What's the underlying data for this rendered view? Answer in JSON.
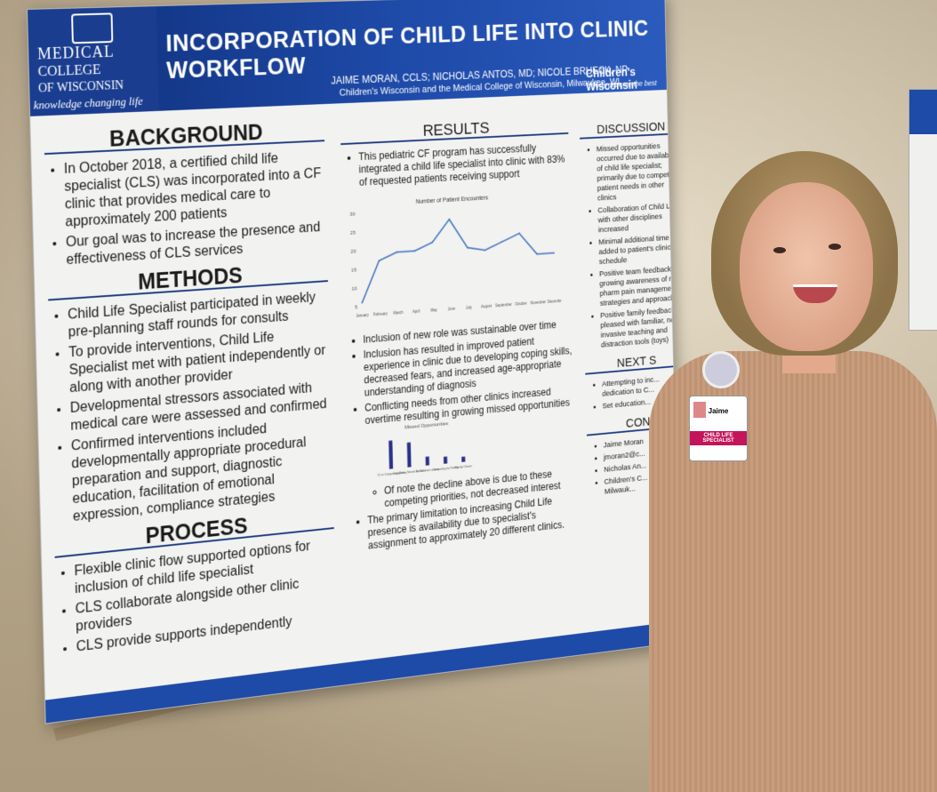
{
  "poster": {
    "logo": {
      "line1": "MEDICAL",
      "line2": "COLLEGE",
      "line3": "OF WISCONSIN",
      "tagline": "knowledge changing life"
    },
    "title": "INCORPORATION OF CHILD LIFE INTO CLINIC WORKFLOW",
    "authors": "JAIME MORAN, CCLS; NICHOLAS ANTOS, MD; NICOLE BRUECK, NP",
    "affiliation": "Children's Wisconsin and the Medical College of Wisconsin, Milwaukee, WI",
    "partner": {
      "name": "Children's Wisconsin",
      "tagline": "Kids deserve the best"
    },
    "background": {
      "heading": "BACKGROUND",
      "items": [
        "In October 2018, a certified child life specialist (CLS) was incorporated into a CF clinic that provides medical care to approximately 200 patients",
        "Our goal was to increase the presence and effectiveness of CLS services"
      ]
    },
    "methods": {
      "heading": "METHODS",
      "items": [
        "Child Life Specialist participated in weekly pre-planning staff rounds for consults",
        "To provide interventions, Child Life Specialist met with patient independently or along with another provider",
        "Developmental stressors associated with medical care were assessed and confirmed",
        "Confirmed interventions included developmentally appropriate procedural preparation and support, diagnostic education, facilitation of emotional expression, compliance strategies"
      ]
    },
    "process": {
      "heading": "PROCESS",
      "items": [
        "Flexible clinic flow supported options for inclusion of child life specialist",
        "CLS collaborate alongside other clinic providers",
        "CLS provide supports independently"
      ]
    },
    "results": {
      "heading": "RESULTS",
      "intro": "This pediatric CF program has successfully integrated a child life specialist into clinic with 83% of requested patients receiving support",
      "items": [
        "Inclusion of new role was sustainable over time",
        "Inclusion has resulted in improved patient experience in clinic due to developing coping skills, decreased fears, and increased age-appropriate understanding of diagnosis",
        "Conflicting needs from other clinics increased overtime resulting in growing missed opportunities"
      ],
      "subitems": [
        "Of note the decline above is due to these competing priorities, not decreased interest",
        "The primary limitation to increasing Child Life presence is availability due to specialist's assignment to approximately 20 different clinics."
      ]
    },
    "discussion": {
      "heading": "DISCUSSION",
      "items": [
        "Missed opportunities occurred due to availability of child life specialist; primarily due to competing patient needs in other clinics",
        "Collaboration of Child Life with other disciplines increased",
        "Minimal additional time was added to patient's clinic schedule",
        "Positive team feedback: growing awareness of non-pharm pain management strategies and approaches",
        "Positive family feedback: pleased with familiar, non-invasive teaching and distraction tools (toys)"
      ]
    },
    "next_steps": {
      "heading": "NEXT S",
      "items": [
        "Attempting to inc... dedication to C...",
        "Set education..."
      ]
    },
    "contact": {
      "heading": "CON",
      "items": [
        "Jaime Moran",
        "jmoran2@c...",
        "Nicholas An...",
        "Children's C... 8915 W... Milwauk..."
      ]
    }
  },
  "badge": {
    "name": "Jaime",
    "role": "CHILD LIFE SPECIALIST"
  },
  "chart_data": [
    {
      "type": "line",
      "title": "Number of Patient Encounters",
      "categories": [
        "January",
        "February",
        "March",
        "April",
        "May",
        "June",
        "July",
        "August",
        "September",
        "October",
        "November",
        "December"
      ],
      "values": [
        6,
        17,
        19,
        19,
        21,
        27,
        19,
        18,
        20,
        22,
        16,
        16
      ],
      "ylim": [
        5,
        30
      ],
      "yticks": [
        5,
        10,
        15,
        20,
        25,
        30
      ],
      "color": "#4a7bc4"
    },
    {
      "type": "bar",
      "title": "Missed Opportunities",
      "categories": [
        "CL in Competing Clinic",
        "Competing Needs in Clinic",
        "Do not meet criteria",
        "Competing for Family",
        "Family Choice"
      ],
      "values": [
        80,
        70,
        25,
        20,
        15
      ],
      "ylim": [
        0,
        100
      ],
      "color": "#2a2f8a"
    }
  ]
}
